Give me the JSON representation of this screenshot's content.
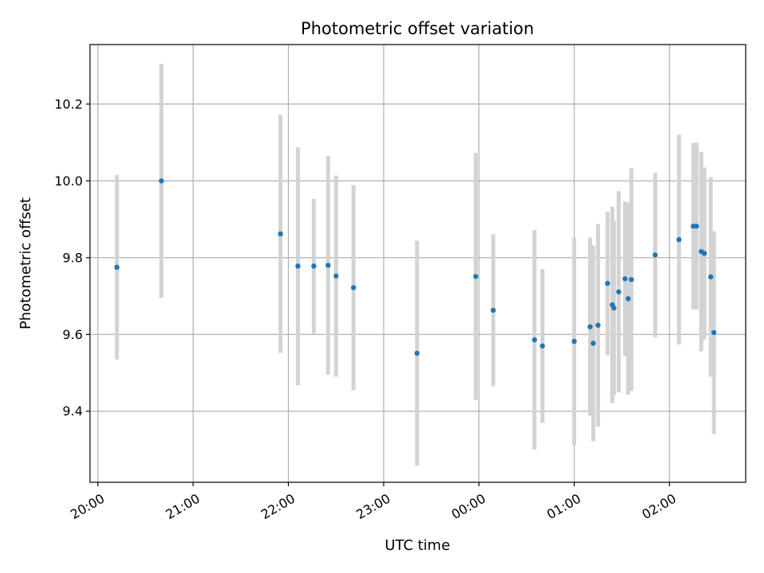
{
  "chart_data": {
    "type": "scatter",
    "title": "Photometric offset variation",
    "xlabel": "UTC time",
    "ylabel": "Photometric offset",
    "x_tick_labels": [
      "20:00",
      "21:00",
      "22:00",
      "23:00",
      "00:00",
      "01:00",
      "02:00"
    ],
    "y_tick_labels": [
      "9.4",
      "9.6",
      "9.8",
      "10.0",
      "10.2"
    ],
    "y_ticks": [
      9.4,
      9.6,
      9.8,
      10.0,
      10.2
    ],
    "ylim": [
      9.215,
      10.355
    ],
    "xlim": [
      "19:55",
      "02:48"
    ],
    "grid": true,
    "colors": {
      "point": "#1f77b4",
      "errorbar": "#d3d3d3",
      "grid": "#b0b0b0"
    },
    "series": [
      {
        "points": [
          {
            "x": "20:12",
            "y": 9.775,
            "err": 0.24
          },
          {
            "x": "20:40",
            "y": 10.0,
            "err": 0.305
          },
          {
            "x": "21:55",
            "y": 9.862,
            "err": 0.31
          },
          {
            "x": "22:06",
            "y": 9.778,
            "err": 0.31
          },
          {
            "x": "22:16",
            "y": 9.778,
            "err": 0.175
          },
          {
            "x": "22:25",
            "y": 9.78,
            "err": 0.285
          },
          {
            "x": "22:30",
            "y": 9.752,
            "err": 0.262
          },
          {
            "x": "22:41",
            "y": 9.722,
            "err": 0.267
          },
          {
            "x": "23:21",
            "y": 9.551,
            "err": 0.293
          },
          {
            "x": "23:58",
            "y": 9.751,
            "err": 0.322
          },
          {
            "x": "00:09",
            "y": 9.663,
            "err": 0.198
          },
          {
            "x": "00:35",
            "y": 9.586,
            "err": 0.286
          },
          {
            "x": "00:40",
            "y": 9.57,
            "err": 0.2
          },
          {
            "x": "01:00",
            "y": 9.582,
            "err": 0.27
          },
          {
            "x": "01:10",
            "y": 9.62,
            "err": 0.232
          },
          {
            "x": "01:12",
            "y": 9.577,
            "err": 0.255
          },
          {
            "x": "01:15",
            "y": 9.624,
            "err": 0.264
          },
          {
            "x": "01:21",
            "y": 9.733,
            "err": 0.187
          },
          {
            "x": "01:24",
            "y": 9.677,
            "err": 0.256
          },
          {
            "x": "01:25",
            "y": 9.669,
            "err": 0.227
          },
          {
            "x": "01:28",
            "y": 9.711,
            "err": 0.262
          },
          {
            "x": "01:32",
            "y": 9.745,
            "err": 0.201
          },
          {
            "x": "01:34",
            "y": 9.693,
            "err": 0.25
          },
          {
            "x": "01:36",
            "y": 9.743,
            "err": 0.29
          },
          {
            "x": "01:51",
            "y": 9.807,
            "err": 0.214
          },
          {
            "x": "02:06",
            "y": 9.847,
            "err": 0.273
          },
          {
            "x": "02:15",
            "y": 9.882,
            "err": 0.217
          },
          {
            "x": "02:17",
            "y": 9.882,
            "err": 0.217
          },
          {
            "x": "02:20",
            "y": 9.816,
            "err": 0.26
          },
          {
            "x": "02:22",
            "y": 9.811,
            "err": 0.224
          },
          {
            "x": "02:26",
            "y": 9.75,
            "err": 0.26
          },
          {
            "x": "02:28",
            "y": 9.605,
            "err": 0.264
          }
        ]
      }
    ]
  }
}
